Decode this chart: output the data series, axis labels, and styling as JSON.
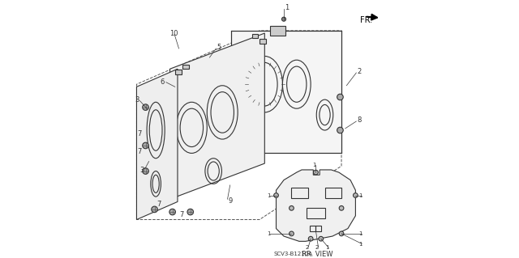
{
  "bg_color": "#ffffff",
  "line_color": "#333333",
  "diagram_code": "SCV3-B1210A"
}
